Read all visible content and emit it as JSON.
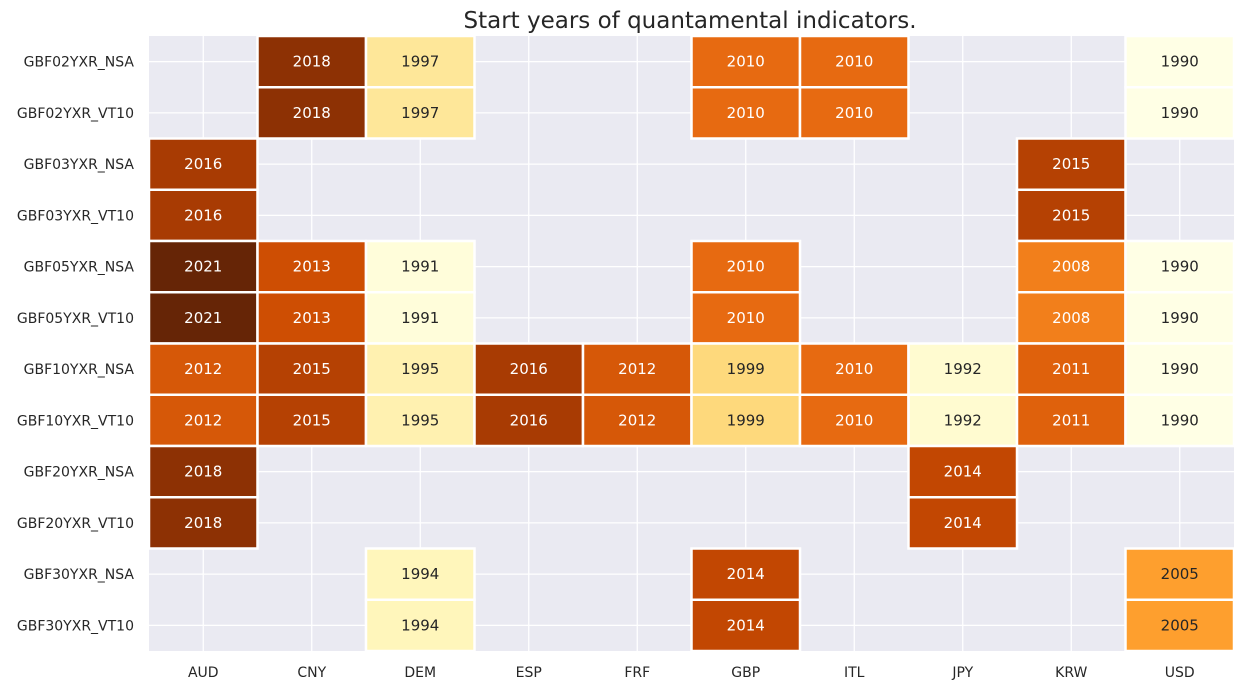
{
  "chart_data": {
    "type": "heatmap",
    "title": "Start years of quantamental indicators.",
    "xlabel": "",
    "ylabel": "",
    "x_categories": [
      "AUD",
      "CNY",
      "DEM",
      "ESP",
      "FRF",
      "GBP",
      "ITL",
      "JPY",
      "KRW",
      "USD"
    ],
    "y_categories": [
      "GBF02YXR_NSA",
      "GBF02YXR_VT10",
      "GBF03YXR_NSA",
      "GBF03YXR_VT10",
      "GBF05YXR_NSA",
      "GBF05YXR_VT10",
      "GBF10YXR_NSA",
      "GBF10YXR_VT10",
      "GBF20YXR_NSA",
      "GBF20YXR_VT10",
      "GBF30YXR_NSA",
      "GBF30YXR_VT10"
    ],
    "values": [
      [
        null,
        2018,
        1997,
        null,
        null,
        2010,
        2010,
        null,
        null,
        1990
      ],
      [
        null,
        2018,
        1997,
        null,
        null,
        2010,
        2010,
        null,
        null,
        1990
      ],
      [
        2016,
        null,
        null,
        null,
        null,
        null,
        null,
        null,
        2015,
        null
      ],
      [
        2016,
        null,
        null,
        null,
        null,
        null,
        null,
        null,
        2015,
        null
      ],
      [
        2021,
        2013,
        1991,
        null,
        null,
        2010,
        null,
        null,
        2008,
        1990
      ],
      [
        2021,
        2013,
        1991,
        null,
        null,
        2010,
        null,
        null,
        2008,
        1990
      ],
      [
        2012,
        2015,
        1995,
        2016,
        2012,
        1999,
        2010,
        1992,
        2011,
        1990
      ],
      [
        2012,
        2015,
        1995,
        2016,
        2012,
        1999,
        2010,
        1992,
        2011,
        1990
      ],
      [
        2018,
        null,
        null,
        null,
        null,
        null,
        null,
        2014,
        null,
        null
      ],
      [
        2018,
        null,
        null,
        null,
        null,
        null,
        null,
        2014,
        null,
        null
      ],
      [
        null,
        null,
        1994,
        null,
        null,
        2014,
        null,
        null,
        null,
        2005
      ],
      [
        null,
        null,
        1994,
        null,
        null,
        2014,
        null,
        null,
        null,
        2005
      ]
    ],
    "colormap": "YlOrBr",
    "vmin": 1990,
    "vmax": 2021,
    "missing_color": "#eaeaf2",
    "grid": true,
    "legend": "none"
  }
}
